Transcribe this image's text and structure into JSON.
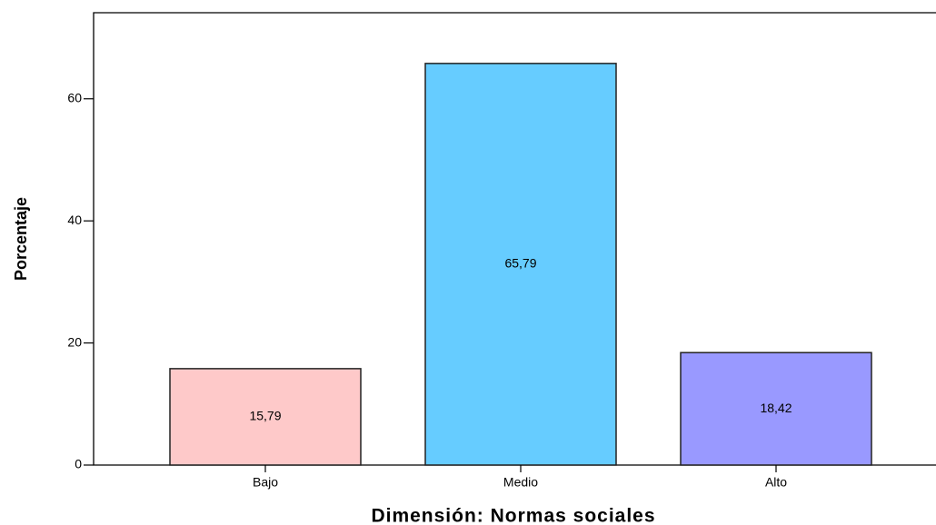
{
  "chart_data": {
    "type": "bar",
    "x_label": "Dimensión:  Normas sociales",
    "y_label": "Porcentaje",
    "categories": [
      "Bajo",
      "Medio",
      "Alto"
    ],
    "values": [
      15.79,
      65.79,
      18.42
    ],
    "value_labels": [
      "15,79",
      "65,79",
      "18,42"
    ],
    "colors": [
      "#fec9c9",
      "#66ccff",
      "#9999ff"
    ],
    "ylim": [
      0,
      74.1
    ],
    "yticks": [
      0,
      20,
      40,
      60
    ],
    "grid": false
  }
}
